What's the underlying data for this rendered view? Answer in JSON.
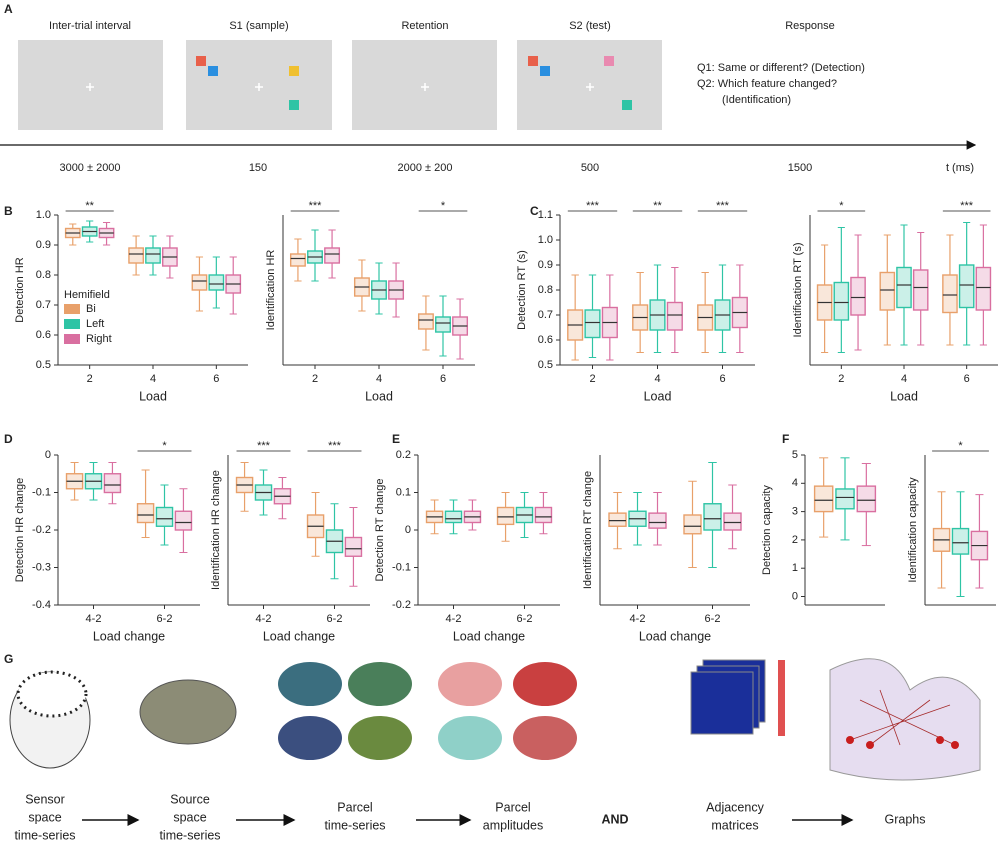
{
  "panel_labels": [
    "A",
    "B",
    "C",
    "D",
    "E",
    "F",
    "G"
  ],
  "trial": {
    "phases": [
      {
        "title": "Inter-trial interval",
        "duration": "3000  ± 2000"
      },
      {
        "title": "S1 (sample)",
        "duration": "150"
      },
      {
        "title": "Retention",
        "duration": "2000  ± 200"
      },
      {
        "title": "S2 (test)",
        "duration": "500"
      }
    ],
    "response": {
      "title": "Response",
      "duration": "1500",
      "questions": [
        "Q1: Same or different? (Detection)",
        "Q2: Which feature changed?",
        "(Identification)"
      ]
    },
    "time_axis_label": "t (ms)"
  },
  "pipeline": {
    "steps": [
      {
        "label": [
          "Sensor",
          "space",
          "time-series"
        ]
      },
      {
        "label": [
          "Source",
          "space",
          "time-series"
        ]
      },
      {
        "label": [
          "Parcel",
          "time-series"
        ]
      },
      {
        "label": [
          "Parcel",
          "amplitudes"
        ]
      },
      {
        "label": [
          "Adjacency",
          "matrices"
        ]
      },
      {
        "label": [
          "Graphs"
        ]
      }
    ],
    "conjunction": "AND"
  },
  "chart_data": [
    {
      "type": "box",
      "ylabel": "Detection HR",
      "xlabel": "Load",
      "categories": [
        "2",
        "4",
        "6"
      ],
      "ylim": [
        0.5,
        1.0
      ],
      "yticks": [
        0.5,
        0.6,
        0.7,
        0.8,
        0.9,
        {
          "value": 1.0,
          "label": "1.0"
        }
      ],
      "legend_title": "Hemifield",
      "series": [
        {
          "name": "Bi",
          "color": "#e8a06a",
          "values": [
            [
              0.9,
              0.925,
              0.94,
              0.955,
              0.97
            ],
            [
              0.8,
              0.84,
              0.87,
              0.89,
              0.93
            ],
            [
              0.68,
              0.75,
              0.78,
              0.8,
              0.86
            ]
          ]
        },
        {
          "name": "Left",
          "color": "#2ec4a5",
          "values": [
            [
              0.91,
              0.93,
              0.945,
              0.96,
              0.98
            ],
            [
              0.8,
              0.84,
              0.87,
              0.89,
              0.93
            ],
            [
              0.69,
              0.75,
              0.77,
              0.8,
              0.86
            ]
          ]
        },
        {
          "name": "Right",
          "color": "#d96fa0",
          "values": [
            [
              0.9,
              0.925,
              0.94,
              0.955,
              0.975
            ],
            [
              0.79,
              0.83,
              0.86,
              0.89,
              0.93
            ],
            [
              0.67,
              0.74,
              0.77,
              0.8,
              0.86
            ]
          ]
        }
      ],
      "significance": [
        {
          "category": "2",
          "label": "**"
        }
      ]
    },
    {
      "type": "box",
      "ylabel": "Identification HR",
      "xlabel": "Load",
      "categories": [
        "2",
        "4",
        "6"
      ],
      "ylim": [
        0.5,
        1.0
      ],
      "series": [
        {
          "color": "#e8a06a",
          "values": [
            [
              0.78,
              0.83,
              0.855,
              0.87,
              0.92
            ],
            [
              0.68,
              0.73,
              0.76,
              0.79,
              0.85
            ],
            [
              0.55,
              0.62,
              0.65,
              0.67,
              0.73
            ]
          ]
        },
        {
          "color": "#2ec4a5",
          "values": [
            [
              0.78,
              0.84,
              0.86,
              0.88,
              0.95
            ],
            [
              0.67,
              0.72,
              0.75,
              0.78,
              0.84
            ],
            [
              0.53,
              0.61,
              0.64,
              0.66,
              0.73
            ]
          ]
        },
        {
          "color": "#d96fa0",
          "values": [
            [
              0.79,
              0.84,
              0.87,
              0.89,
              0.95
            ],
            [
              0.66,
              0.72,
              0.75,
              0.78,
              0.84
            ],
            [
              0.52,
              0.6,
              0.63,
              0.66,
              0.72
            ]
          ]
        }
      ],
      "significance": [
        {
          "category": "2",
          "label": "***"
        },
        {
          "category": "6",
          "label": "*"
        }
      ]
    },
    {
      "type": "box",
      "ylabel": "Detection RT (s)",
      "xlabel": "Load",
      "categories": [
        "2",
        "4",
        "6"
      ],
      "ylim": [
        0.5,
        1.1
      ],
      "yticks": [
        0.5,
        0.6,
        0.7,
        0.8,
        0.9,
        {
          "value": 1.0,
          "label": "1.0"
        },
        1.1
      ],
      "series": [
        {
          "color": "#e8a06a",
          "values": [
            [
              0.52,
              0.6,
              0.66,
              0.72,
              0.86
            ],
            [
              0.55,
              0.64,
              0.69,
              0.74,
              0.87
            ],
            [
              0.55,
              0.64,
              0.69,
              0.74,
              0.87
            ]
          ]
        },
        {
          "color": "#2ec4a5",
          "values": [
            [
              0.53,
              0.61,
              0.67,
              0.72,
              0.86
            ],
            [
              0.55,
              0.64,
              0.7,
              0.76,
              0.9
            ],
            [
              0.55,
              0.64,
              0.7,
              0.76,
              0.9
            ]
          ]
        },
        {
          "color": "#d96fa0",
          "values": [
            [
              0.52,
              0.61,
              0.67,
              0.73,
              0.86
            ],
            [
              0.55,
              0.64,
              0.7,
              0.75,
              0.89
            ],
            [
              0.55,
              0.65,
              0.71,
              0.77,
              0.9
            ]
          ]
        }
      ],
      "significance": [
        {
          "category": "2",
          "label": "***"
        },
        {
          "category": "4",
          "label": "**"
        },
        {
          "category": "6",
          "label": "***"
        }
      ]
    },
    {
      "type": "box",
      "ylabel": "Identification RT (s)",
      "xlabel": "Load",
      "categories": [
        "2",
        "4",
        "6"
      ],
      "ylim": [
        0.5,
        1.1
      ],
      "series": [
        {
          "color": "#e8a06a",
          "values": [
            [
              0.55,
              0.68,
              0.75,
              0.82,
              0.98
            ],
            [
              0.58,
              0.72,
              0.8,
              0.87,
              1.02
            ],
            [
              0.58,
              0.71,
              0.78,
              0.86,
              1.02
            ]
          ]
        },
        {
          "color": "#2ec4a5",
          "values": [
            [
              0.55,
              0.68,
              0.75,
              0.83,
              1.05
            ],
            [
              0.58,
              0.73,
              0.82,
              0.89,
              1.06
            ],
            [
              0.58,
              0.73,
              0.82,
              0.9,
              1.07
            ]
          ]
        },
        {
          "color": "#d96fa0",
          "values": [
            [
              0.56,
              0.7,
              0.77,
              0.85,
              1.02
            ],
            [
              0.58,
              0.72,
              0.81,
              0.88,
              1.03
            ],
            [
              0.58,
              0.72,
              0.81,
              0.89,
              1.06
            ]
          ]
        }
      ],
      "significance": [
        {
          "category": "2",
          "label": "*"
        },
        {
          "category": "6",
          "label": "***"
        }
      ]
    },
    {
      "type": "box",
      "ylabel": "Detection HR change",
      "xlabel": "Load change",
      "categories": [
        "4-2",
        "6-2"
      ],
      "ylim": [
        -0.4,
        0
      ],
      "yticks": [
        -0.4,
        -0.3,
        -0.2,
        -0.1,
        0
      ],
      "series": [
        {
          "color": "#e8a06a",
          "values": [
            [
              -0.12,
              -0.09,
              -0.07,
              -0.05,
              -0.02
            ],
            [
              -0.22,
              -0.18,
              -0.16,
              -0.13,
              -0.04
            ]
          ]
        },
        {
          "color": "#2ec4a5",
          "values": [
            [
              -0.12,
              -0.09,
              -0.07,
              -0.05,
              -0.02
            ],
            [
              -0.24,
              -0.19,
              -0.17,
              -0.14,
              -0.08
            ]
          ]
        },
        {
          "color": "#d96fa0",
          "values": [
            [
              -0.13,
              -0.1,
              -0.08,
              -0.05,
              -0.02
            ],
            [
              -0.26,
              -0.2,
              -0.18,
              -0.15,
              -0.09
            ]
          ]
        }
      ],
      "significance": [
        {
          "category": "6-2",
          "label": "*"
        }
      ]
    },
    {
      "type": "box",
      "ylabel": "Identification HR change",
      "xlabel": "Load change",
      "categories": [
        "4-2",
        "6-2"
      ],
      "ylim": [
        -0.4,
        0
      ],
      "series": [
        {
          "color": "#e8a06a",
          "values": [
            [
              -0.15,
              -0.1,
              -0.08,
              -0.06,
              -0.02
            ],
            [
              -0.27,
              -0.22,
              -0.19,
              -0.16,
              -0.1
            ]
          ]
        },
        {
          "color": "#2ec4a5",
          "values": [
            [
              -0.16,
              -0.12,
              -0.1,
              -0.08,
              -0.04
            ],
            [
              -0.33,
              -0.26,
              -0.23,
              -0.2,
              -0.13
            ]
          ]
        },
        {
          "color": "#d96fa0",
          "values": [
            [
              -0.17,
              -0.13,
              -0.11,
              -0.09,
              -0.06
            ],
            [
              -0.35,
              -0.27,
              -0.25,
              -0.22,
              -0.14
            ]
          ]
        }
      ],
      "significance": [
        {
          "category": "4-2",
          "label": "***"
        },
        {
          "category": "6-2",
          "label": "***"
        }
      ]
    },
    {
      "type": "box",
      "ylabel": "Detection RT change",
      "xlabel": "Load change",
      "categories": [
        "4-2",
        "6-2"
      ],
      "ylim": [
        -0.2,
        0.2
      ],
      "yticks": [
        -0.2,
        -0.1,
        0,
        0.1,
        0.2
      ],
      "series": [
        {
          "color": "#e8a06a",
          "values": [
            [
              -0.01,
              0.02,
              0.035,
              0.05,
              0.08
            ],
            [
              -0.03,
              0.015,
              0.035,
              0.06,
              0.1
            ]
          ]
        },
        {
          "color": "#2ec4a5",
          "values": [
            [
              -0.01,
              0.02,
              0.03,
              0.05,
              0.08
            ],
            [
              -0.02,
              0.02,
              0.04,
              0.06,
              0.1
            ]
          ]
        },
        {
          "color": "#d96fa0",
          "values": [
            [
              0.0,
              0.02,
              0.035,
              0.05,
              0.08
            ],
            [
              -0.01,
              0.02,
              0.035,
              0.06,
              0.1
            ]
          ]
        }
      ]
    },
    {
      "type": "box",
      "ylabel": "Identification RT change",
      "xlabel": "Load change",
      "categories": [
        "4-2",
        "6-2"
      ],
      "ylim": [
        -0.2,
        0.2
      ],
      "series": [
        {
          "color": "#e8a06a",
          "values": [
            [
              -0.05,
              0.01,
              0.025,
              0.045,
              0.1
            ],
            [
              -0.1,
              -0.01,
              0.01,
              0.04,
              0.13
            ]
          ]
        },
        {
          "color": "#2ec4a5",
          "values": [
            [
              -0.04,
              0.01,
              0.03,
              0.05,
              0.1
            ],
            [
              -0.1,
              0.0,
              0.03,
              0.07,
              0.18
            ]
          ]
        },
        {
          "color": "#d96fa0",
          "values": [
            [
              -0.04,
              0.005,
              0.02,
              0.045,
              0.1
            ],
            [
              -0.05,
              0.0,
              0.02,
              0.045,
              0.12
            ]
          ]
        }
      ]
    },
    {
      "type": "box",
      "ylabel": "Detection capacity",
      "categories": [
        null
      ],
      "ylim": [
        -0.3,
        5
      ],
      "yticks": [
        0,
        1,
        2,
        3,
        4,
        5
      ],
      "series": [
        {
          "color": "#e8a06a",
          "values": [
            [
              2.1,
              3.0,
              3.4,
              3.9,
              4.9
            ]
          ]
        },
        {
          "color": "#2ec4a5",
          "values": [
            [
              2.0,
              3.1,
              3.5,
              3.8,
              4.9
            ]
          ]
        },
        {
          "color": "#d96fa0",
          "values": [
            [
              1.8,
              3.0,
              3.4,
              3.9,
              4.7
            ]
          ]
        }
      ]
    },
    {
      "type": "box",
      "ylabel": "Identification capacity",
      "categories": [
        null
      ],
      "ylim": [
        -0.3,
        5
      ],
      "series": [
        {
          "color": "#e8a06a",
          "values": [
            [
              0.3,
              1.6,
              2.0,
              2.4,
              3.7
            ]
          ]
        },
        {
          "color": "#2ec4a5",
          "values": [
            [
              0.0,
              1.5,
              1.9,
              2.4,
              3.7
            ]
          ]
        },
        {
          "color": "#d96fa0",
          "values": [
            [
              0.3,
              1.3,
              1.8,
              2.3,
              3.6
            ]
          ]
        }
      ],
      "significance": [
        {
          "label": "*"
        }
      ]
    }
  ]
}
